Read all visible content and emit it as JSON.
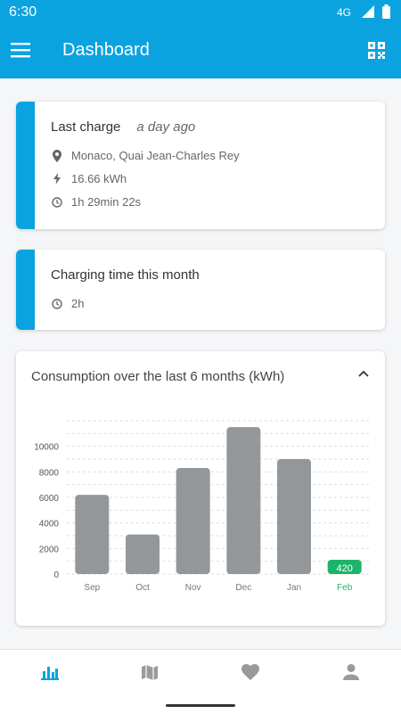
{
  "status_bar": {
    "time": "6:30",
    "network": "4G"
  },
  "app_bar": {
    "title": "Dashboard",
    "icons": [
      "menu-icon",
      "qr-code-icon"
    ]
  },
  "last_charge": {
    "title": "Last charge",
    "when": "a day ago",
    "location": "Monaco, Quai Jean-Charles Rey",
    "energy": "16.66 kWh",
    "duration": "1h 29min 22s"
  },
  "monthly_time": {
    "title": "Charging time this month",
    "value": "2h"
  },
  "consumption": {
    "title": "Consumption over the last 6 months (kWh)"
  },
  "chart_data": {
    "type": "bar",
    "categories": [
      "Sep",
      "Oct",
      "Nov",
      "Dec",
      "Jan",
      "Feb"
    ],
    "values": [
      6200,
      3100,
      8300,
      11500,
      9000,
      420
    ],
    "data_labels": [
      "",
      "",
      "",
      "",
      "",
      "420"
    ],
    "title": "Consumption over the last 6 months (kWh)",
    "xlabel": "",
    "ylabel": "",
    "yticks": [
      "0",
      "2000",
      "4000",
      "6000",
      "8000",
      "10000"
    ],
    "ylim": [
      0,
      12000
    ],
    "grid": "horizontal dashed",
    "colors": {
      "bar": "#949799",
      "highlight": "#1db46a",
      "highlight_index": 5
    }
  },
  "bottom_nav": {
    "items": [
      "bar-chart-icon",
      "map-icon",
      "heart-icon",
      "person-icon"
    ],
    "active": 0
  },
  "colors": {
    "primary": "#0aa3e0",
    "accent_green": "#1db46a",
    "bar_gray": "#949799"
  }
}
